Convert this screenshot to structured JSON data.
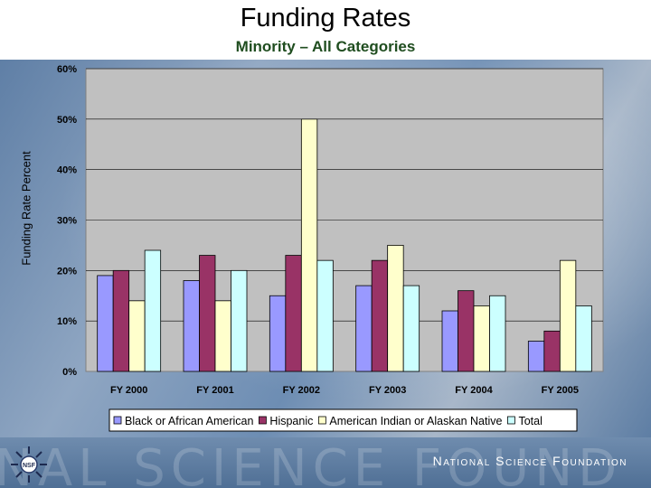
{
  "page": {
    "title": "Funding Rates",
    "subtitle": "Minority – All Categories",
    "organization": "National Science Foundation",
    "footer_watermark": "NAL SCIENCE FOUND",
    "logo_text": "NSF"
  },
  "chart_data": {
    "type": "bar",
    "title": "Funding Rates",
    "subtitle": "Minority – All Categories",
    "xlabel": "",
    "ylabel": "Funding Rate Percent",
    "categories": [
      "FY 2000",
      "FY 2001",
      "FY 2002",
      "FY 2003",
      "FY 2004",
      "FY 2005"
    ],
    "series": [
      {
        "name": "Black or African American",
        "color": "#9999ff",
        "values": [
          19,
          18,
          15,
          17,
          12,
          6
        ]
      },
      {
        "name": "Hispanic",
        "color": "#993366",
        "values": [
          20,
          23,
          23,
          22,
          16,
          8
        ]
      },
      {
        "name": "American Indian or Alaskan Native",
        "color": "#ffffcc",
        "values": [
          14,
          14,
          50,
          25,
          13,
          22
        ]
      },
      {
        "name": "Total",
        "color": "#ccffff",
        "values": [
          24,
          20,
          22,
          17,
          15,
          13
        ]
      }
    ],
    "yticks": [
      "0%",
      "10%",
      "20%",
      "30%",
      "40%",
      "50%",
      "60%"
    ],
    "ylim": [
      0,
      60
    ],
    "grid": true,
    "legend_position": "bottom",
    "plot_background": "#c0c0c0"
  }
}
